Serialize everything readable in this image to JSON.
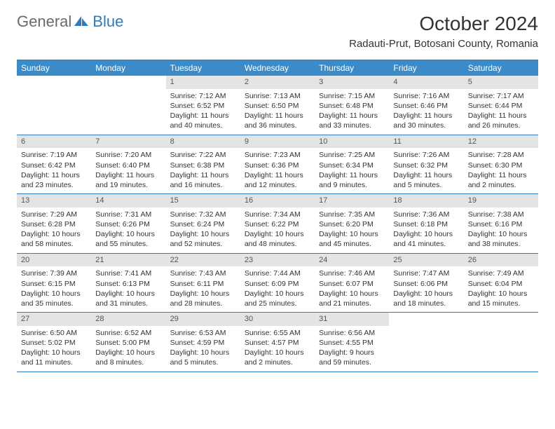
{
  "logo": {
    "general": "General",
    "blue": "Blue"
  },
  "title": "October 2024",
  "location": "Radauti-Prut, Botosani County, Romania",
  "day_headers": [
    "Sunday",
    "Monday",
    "Tuesday",
    "Wednesday",
    "Thursday",
    "Friday",
    "Saturday"
  ],
  "colors": {
    "header_bg": "#3b8bc8",
    "border": "#2f7bbf",
    "daynum_bg": "#e4e4e4",
    "logo_gray": "#6a6a6a",
    "logo_blue": "#2f7bbf"
  },
  "weeks": [
    [
      null,
      null,
      {
        "n": "1",
        "sr": "Sunrise: 7:12 AM",
        "ss": "Sunset: 6:52 PM",
        "dl": "Daylight: 11 hours and 40 minutes."
      },
      {
        "n": "2",
        "sr": "Sunrise: 7:13 AM",
        "ss": "Sunset: 6:50 PM",
        "dl": "Daylight: 11 hours and 36 minutes."
      },
      {
        "n": "3",
        "sr": "Sunrise: 7:15 AM",
        "ss": "Sunset: 6:48 PM",
        "dl": "Daylight: 11 hours and 33 minutes."
      },
      {
        "n": "4",
        "sr": "Sunrise: 7:16 AM",
        "ss": "Sunset: 6:46 PM",
        "dl": "Daylight: 11 hours and 30 minutes."
      },
      {
        "n": "5",
        "sr": "Sunrise: 7:17 AM",
        "ss": "Sunset: 6:44 PM",
        "dl": "Daylight: 11 hours and 26 minutes."
      }
    ],
    [
      {
        "n": "6",
        "sr": "Sunrise: 7:19 AM",
        "ss": "Sunset: 6:42 PM",
        "dl": "Daylight: 11 hours and 23 minutes."
      },
      {
        "n": "7",
        "sr": "Sunrise: 7:20 AM",
        "ss": "Sunset: 6:40 PM",
        "dl": "Daylight: 11 hours and 19 minutes."
      },
      {
        "n": "8",
        "sr": "Sunrise: 7:22 AM",
        "ss": "Sunset: 6:38 PM",
        "dl": "Daylight: 11 hours and 16 minutes."
      },
      {
        "n": "9",
        "sr": "Sunrise: 7:23 AM",
        "ss": "Sunset: 6:36 PM",
        "dl": "Daylight: 11 hours and 12 minutes."
      },
      {
        "n": "10",
        "sr": "Sunrise: 7:25 AM",
        "ss": "Sunset: 6:34 PM",
        "dl": "Daylight: 11 hours and 9 minutes."
      },
      {
        "n": "11",
        "sr": "Sunrise: 7:26 AM",
        "ss": "Sunset: 6:32 PM",
        "dl": "Daylight: 11 hours and 5 minutes."
      },
      {
        "n": "12",
        "sr": "Sunrise: 7:28 AM",
        "ss": "Sunset: 6:30 PM",
        "dl": "Daylight: 11 hours and 2 minutes."
      }
    ],
    [
      {
        "n": "13",
        "sr": "Sunrise: 7:29 AM",
        "ss": "Sunset: 6:28 PM",
        "dl": "Daylight: 10 hours and 58 minutes."
      },
      {
        "n": "14",
        "sr": "Sunrise: 7:31 AM",
        "ss": "Sunset: 6:26 PM",
        "dl": "Daylight: 10 hours and 55 minutes."
      },
      {
        "n": "15",
        "sr": "Sunrise: 7:32 AM",
        "ss": "Sunset: 6:24 PM",
        "dl": "Daylight: 10 hours and 52 minutes."
      },
      {
        "n": "16",
        "sr": "Sunrise: 7:34 AM",
        "ss": "Sunset: 6:22 PM",
        "dl": "Daylight: 10 hours and 48 minutes."
      },
      {
        "n": "17",
        "sr": "Sunrise: 7:35 AM",
        "ss": "Sunset: 6:20 PM",
        "dl": "Daylight: 10 hours and 45 minutes."
      },
      {
        "n": "18",
        "sr": "Sunrise: 7:36 AM",
        "ss": "Sunset: 6:18 PM",
        "dl": "Daylight: 10 hours and 41 minutes."
      },
      {
        "n": "19",
        "sr": "Sunrise: 7:38 AM",
        "ss": "Sunset: 6:16 PM",
        "dl": "Daylight: 10 hours and 38 minutes."
      }
    ],
    [
      {
        "n": "20",
        "sr": "Sunrise: 7:39 AM",
        "ss": "Sunset: 6:15 PM",
        "dl": "Daylight: 10 hours and 35 minutes."
      },
      {
        "n": "21",
        "sr": "Sunrise: 7:41 AM",
        "ss": "Sunset: 6:13 PM",
        "dl": "Daylight: 10 hours and 31 minutes."
      },
      {
        "n": "22",
        "sr": "Sunrise: 7:43 AM",
        "ss": "Sunset: 6:11 PM",
        "dl": "Daylight: 10 hours and 28 minutes."
      },
      {
        "n": "23",
        "sr": "Sunrise: 7:44 AM",
        "ss": "Sunset: 6:09 PM",
        "dl": "Daylight: 10 hours and 25 minutes."
      },
      {
        "n": "24",
        "sr": "Sunrise: 7:46 AM",
        "ss": "Sunset: 6:07 PM",
        "dl": "Daylight: 10 hours and 21 minutes."
      },
      {
        "n": "25",
        "sr": "Sunrise: 7:47 AM",
        "ss": "Sunset: 6:06 PM",
        "dl": "Daylight: 10 hours and 18 minutes."
      },
      {
        "n": "26",
        "sr": "Sunrise: 7:49 AM",
        "ss": "Sunset: 6:04 PM",
        "dl": "Daylight: 10 hours and 15 minutes."
      }
    ],
    [
      {
        "n": "27",
        "sr": "Sunrise: 6:50 AM",
        "ss": "Sunset: 5:02 PM",
        "dl": "Daylight: 10 hours and 11 minutes."
      },
      {
        "n": "28",
        "sr": "Sunrise: 6:52 AM",
        "ss": "Sunset: 5:00 PM",
        "dl": "Daylight: 10 hours and 8 minutes."
      },
      {
        "n": "29",
        "sr": "Sunrise: 6:53 AM",
        "ss": "Sunset: 4:59 PM",
        "dl": "Daylight: 10 hours and 5 minutes."
      },
      {
        "n": "30",
        "sr": "Sunrise: 6:55 AM",
        "ss": "Sunset: 4:57 PM",
        "dl": "Daylight: 10 hours and 2 minutes."
      },
      {
        "n": "31",
        "sr": "Sunrise: 6:56 AM",
        "ss": "Sunset: 4:55 PM",
        "dl": "Daylight: 9 hours and 59 minutes."
      },
      null,
      null
    ]
  ]
}
